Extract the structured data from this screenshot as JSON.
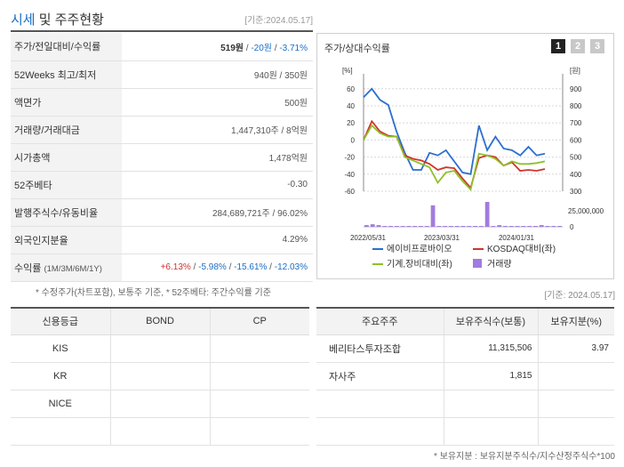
{
  "header": {
    "title_part1": "시세",
    "title_part2": " 및 주주현황",
    "ref_date": "[기준:2024.05.17]"
  },
  "summary": [
    {
      "label": "주가/전일대비/수익률",
      "price": "519원",
      "sep1": " / ",
      "change": "-20원",
      "sep2": " / ",
      "rate": "-3.71%"
    },
    {
      "label": "52Weeks 최고/최저",
      "value": "940원 / 350원"
    },
    {
      "label": "액면가",
      "value": "500원"
    },
    {
      "label": "거래량/거래대금",
      "value": "1,447,310주 / 8억원"
    },
    {
      "label": "시가총액",
      "value": "1,478억원"
    },
    {
      "label": "52주베타",
      "value": "-0.30"
    },
    {
      "label": "발행주식수/유동비율",
      "value": "284,689,721주 / 96.02%"
    },
    {
      "label": "외국인지분율",
      "value": "4.29%"
    },
    {
      "label": "수익률",
      "label_sub": "(1M/3M/6M/1Y)",
      "r1": "+6.13%",
      "r2": "-5.98%",
      "r3": "-15.61%",
      "r4": "-12.03%",
      "slash": " / "
    }
  ],
  "footnote": "* 수정주가(차트포함), 보통주 기준, * 52주베타: 주간수익률 기준",
  "chart_panel": {
    "title": "주가/상대수익률",
    "buttons": [
      "1",
      "2",
      "3"
    ],
    "active_button": "1",
    "colors": {
      "stock": "#2a6fce",
      "kosdaq": "#d0342c",
      "sector": "#8fc02a",
      "volume": "#a27be0"
    }
  },
  "chart_data": {
    "type": "line",
    "y_left_label": "[%]",
    "y_right_label": "[원]",
    "y_left_ticks": [
      "60",
      "40",
      "20",
      "0",
      "-20",
      "-40",
      "-60"
    ],
    "y_right_ticks": [
      "900",
      "800",
      "700",
      "600",
      "500",
      "400",
      "300"
    ],
    "volume_tick": "25,000,000",
    "volume_zero": "0",
    "x_ticks": [
      "2022/05/31",
      "2023/03/31",
      "2024/01/31"
    ],
    "ylim": [
      -60,
      65
    ],
    "series": [
      {
        "name": "에이비프로바이오",
        "values": [
          50,
          60,
          47,
          41,
          10,
          -15,
          -35,
          -35,
          -15,
          -18,
          -12,
          -25,
          -38,
          -40,
          17,
          -12,
          4,
          -10,
          -12,
          -18,
          -8,
          -18,
          -16
        ]
      },
      {
        "name": "KOSDAQ대비(좌)",
        "values": [
          0,
          22,
          10,
          5,
          4,
          -18,
          -22,
          -24,
          -28,
          -35,
          -32,
          -33,
          -45,
          -56,
          -21,
          -18,
          -20,
          -30,
          -26,
          -36,
          -35,
          -36,
          -34
        ]
      },
      {
        "name": "기계,장비대비(좌)",
        "values": [
          0,
          17,
          8,
          4,
          4,
          -20,
          -24,
          -28,
          -32,
          -50,
          -38,
          -36,
          -48,
          -58,
          -16,
          -18,
          -22,
          -30,
          -25,
          -28,
          -28,
          -27,
          -25
        ]
      }
    ],
    "volume_name": "거래량",
    "volume": [
      2,
      3,
      2,
      1,
      1,
      1,
      1,
      1,
      1,
      1,
      1,
      25,
      1,
      1,
      1,
      1,
      1,
      1,
      1,
      1,
      29,
      1,
      2,
      1,
      1,
      1,
      1,
      1,
      1,
      2,
      1,
      1,
      1
    ]
  },
  "chart_ref": "[기준: 2024.05.17]",
  "credit": {
    "headers": [
      "신용등급",
      "BOND",
      "CP"
    ],
    "rows": [
      [
        "KIS",
        "",
        ""
      ],
      [
        "KR",
        "",
        ""
      ],
      [
        "NICE",
        "",
        ""
      ],
      [
        "",
        "",
        ""
      ]
    ]
  },
  "holders": {
    "headers": [
      "주요주주",
      "보유주식수(보통)",
      "보유지분(%)"
    ],
    "rows": [
      [
        "베리타스투자조합",
        "11,315,506",
        "3.97"
      ],
      [
        "자사주",
        "1,815",
        ""
      ],
      [
        "",
        "",
        ""
      ],
      [
        "",
        "",
        ""
      ]
    ]
  },
  "footnote2": "* 보유지분 : 보유지분주식수/지수산정주식수*100"
}
